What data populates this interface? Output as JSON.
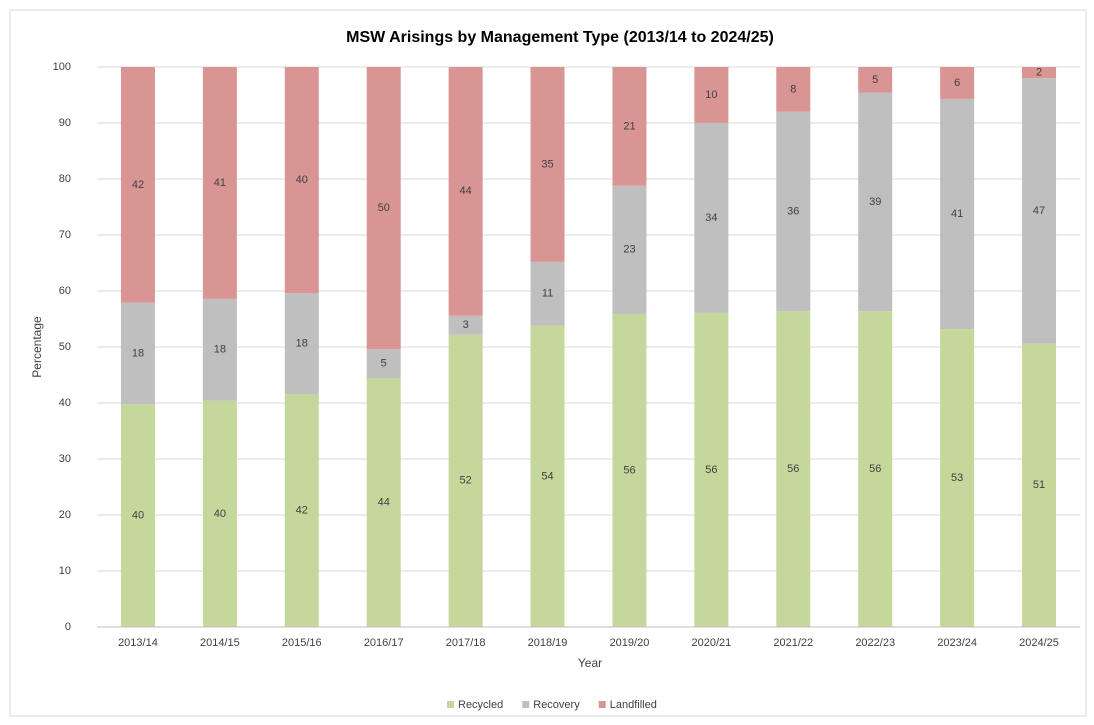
{
  "chart_data": {
    "type": "stacked_bar",
    "title": "MSW Arisings by Management Type (2013/14 to 2024/25)",
    "x_label": "Year",
    "y_label": "Percentage",
    "categories": [
      "2013/14",
      "2014/15",
      "2015/16",
      "2016/17",
      "2017/18",
      "2018/19",
      "2019/20",
      "2020/21",
      "2021/22",
      "2022/23",
      "2023/24",
      "2024/25"
    ],
    "series": [
      {
        "name": "Recycled",
        "color": "#c5d89b",
        "values": [
          39.8,
          40.4,
          41.6,
          44.4,
          52.2,
          53.8,
          55.9,
          56.1,
          56.4,
          56.4,
          53.2,
          50.6
        ],
        "value_labels": [
          "40",
          "40",
          "42",
          "44",
          "52",
          "54",
          "56",
          "56",
          "56",
          "56",
          "53",
          "51"
        ]
      },
      {
        "name": "Recovery",
        "color": "#bfbfbf",
        "values": [
          18.1,
          18.2,
          18.0,
          5.2,
          3.4,
          11.4,
          22.9,
          33.9,
          35.6,
          39.0,
          41.1,
          47.4
        ],
        "value_labels": [
          "18",
          "18",
          "18",
          "5",
          "3",
          "11",
          "23",
          "34",
          "36",
          "39",
          "41",
          "47"
        ]
      },
      {
        "name": "Landfilled",
        "color": "#d99594",
        "values": [
          42.1,
          41.4,
          40.4,
          50.4,
          44.4,
          34.8,
          21.2,
          10.0,
          8.0,
          4.6,
          5.7,
          2.0
        ],
        "value_labels": [
          "42",
          "41",
          "40",
          "50",
          "44",
          "35",
          "21",
          "10",
          "8",
          "5",
          "6",
          "2"
        ]
      }
    ],
    "ylim": [
      0,
      100
    ],
    "yticks": [
      0,
      10,
      20,
      30,
      40,
      50,
      60,
      70,
      80,
      90,
      100
    ],
    "grid": true,
    "legend": "bottom"
  }
}
